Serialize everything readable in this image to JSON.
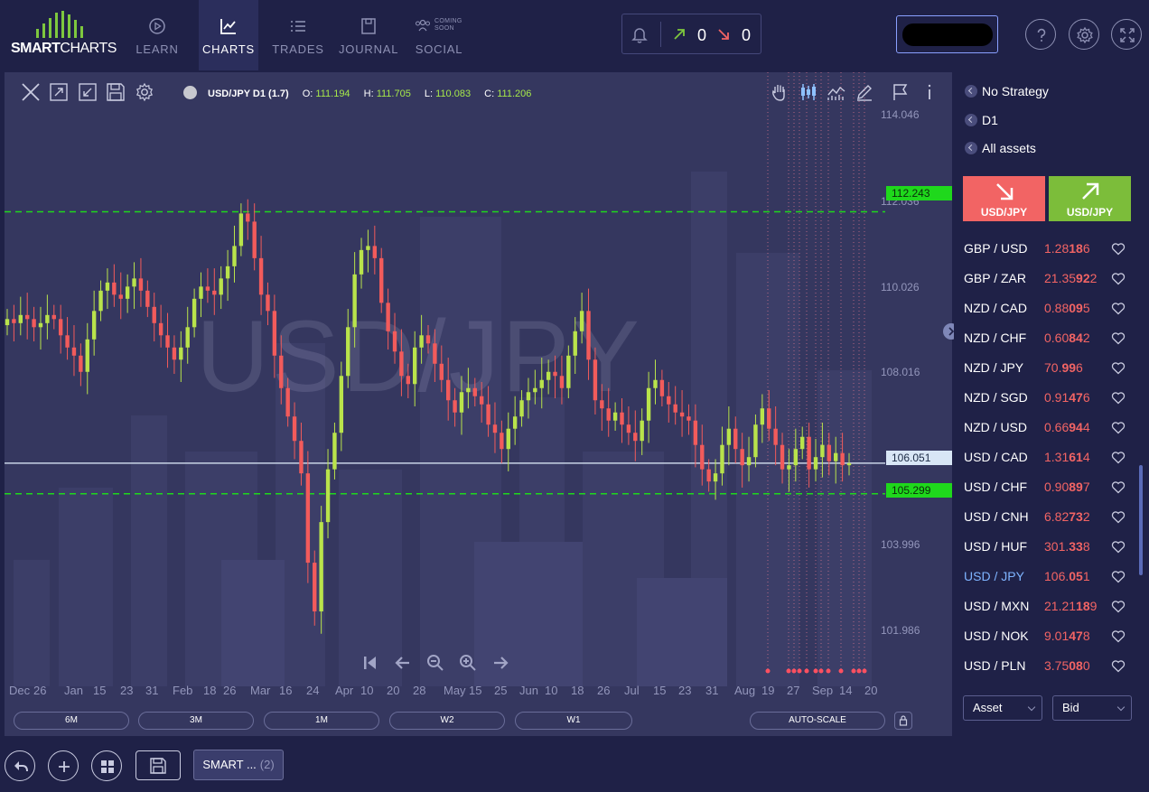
{
  "brand": {
    "logo_bold": "SMART",
    "logo_light": "CHARTS"
  },
  "nav": [
    {
      "label": "LEARN",
      "icon": "play-circle-icon",
      "active": false
    },
    {
      "label": "CHARTS",
      "icon": "line-chart-icon",
      "active": true
    },
    {
      "label": "TRADES",
      "icon": "list-icon",
      "active": false
    },
    {
      "label": "JOURNAL",
      "icon": "journal-icon",
      "active": false
    },
    {
      "label": "SOCIAL",
      "icon": "social-icon",
      "active": false,
      "badge": "COMING SOON"
    }
  ],
  "alerts": {
    "up_count": "0",
    "down_count": "0"
  },
  "chart": {
    "symbol_label": "USD/JPY D1 (1.7)",
    "open_key": "O:",
    "open": "111.194",
    "high_key": "H:",
    "high": "111.705",
    "low_key": "L:",
    "low": "110.083",
    "close_key": "C:",
    "close": "111.206",
    "watermark": "USD/JPY",
    "lines": {
      "upper": "112.243",
      "current": "106.051",
      "lower": "105.299"
    },
    "y_ticks": [
      "114.046",
      "112.036",
      "110.026",
      "108.016",
      "103.996",
      "101.986"
    ],
    "x_labels": [
      "Dec",
      "26",
      "Jan",
      "15",
      "23",
      "31",
      "Feb",
      "18",
      "26",
      "Mar",
      "16",
      "24",
      "Apr",
      "10",
      "20",
      "28",
      "May",
      "15",
      "25",
      "Jun",
      "10",
      "18",
      "26",
      "Jul",
      "15",
      "23",
      "31",
      "Aug",
      "19",
      "27",
      "Sep",
      "14",
      "20"
    ],
    "timeframes": [
      "6M",
      "3M",
      "1M",
      "W2",
      "W1"
    ],
    "auto_scale": "AUTO-SCALE",
    "colors": {
      "up": "#b9e34b",
      "down": "#f25b5b",
      "level": "#1fd81c"
    }
  },
  "chart_data": {
    "type": "candlestick",
    "title": "USD/JPY D1",
    "ylim": [
      101.0,
      114.7
    ],
    "y_ticks": [
      114.046,
      112.036,
      110.026,
      108.016,
      103.996,
      101.986
    ],
    "levels": [
      112.243,
      106.051,
      105.299
    ],
    "close_series": [
      109.6,
      109.5,
      109.7,
      109.6,
      109.4,
      109.5,
      109.7,
      109.6,
      109.2,
      108.9,
      108.7,
      108.3,
      109.1,
      109.8,
      110.3,
      110.5,
      110.2,
      110.1,
      110.4,
      110.6,
      110.3,
      109.9,
      109.5,
      109.2,
      108.9,
      108.6,
      108.9,
      109.4,
      110.1,
      110.4,
      110.3,
      110.2,
      110.6,
      110.9,
      111.4,
      112.2,
      112.0,
      111.1,
      110.2,
      109.8,
      108.7,
      107.9,
      107.2,
      106.6,
      105.8,
      103.6,
      102.4,
      104.6,
      105.9,
      106.8,
      108.2,
      109.4,
      110.7,
      111.3,
      111.4,
      111.1,
      110.0,
      109.3,
      108.8,
      108.2,
      108.0,
      108.9,
      109.2,
      109.0,
      108.5,
      108.1,
      107.6,
      107.3,
      107.8,
      107.9,
      107.7,
      107.5,
      107.0,
      106.8,
      106.4,
      106.9,
      107.2,
      107.6,
      107.8,
      107.9,
      108.1,
      108.3,
      108.2,
      107.9,
      108.7,
      109.3,
      109.8,
      108.6,
      107.6,
      107.4,
      107.1,
      107.3,
      107.0,
      106.8,
      106.6,
      107.1,
      107.9,
      108.1,
      107.7,
      107.5,
      107.3,
      107.2,
      107.1,
      106.5,
      105.9,
      105.6,
      105.8,
      106.5,
      106.9,
      106.4,
      106.0,
      106.2,
      107.0,
      107.4,
      106.9,
      106.5,
      105.9,
      106.0,
      106.4,
      106.7,
      105.9,
      106.2,
      106.5,
      106.1,
      106.3,
      106.0,
      106.05
    ]
  },
  "right_panel": {
    "filters": [
      "No Strategy",
      "D1",
      "All assets"
    ],
    "sell_label": "USD/JPY",
    "buy_label": "USD/JPY",
    "watchlist": [
      {
        "pair": "GBP  /  USD",
        "pre": "1.28",
        "big": "18",
        "post": "6",
        "active": false
      },
      {
        "pair": "GBP  /  ZAR",
        "pre": "21.35",
        "big": "92",
        "post": "2",
        "active": false
      },
      {
        "pair": "NZD  /  CAD",
        "pre": "0.88",
        "big": "09",
        "post": "5",
        "active": false
      },
      {
        "pair": "NZD  /  CHF",
        "pre": "0.60",
        "big": "84",
        "post": "2",
        "active": false
      },
      {
        "pair": "NZD  /   JPY",
        "pre": "70.",
        "big": "99",
        "post": "6",
        "active": false
      },
      {
        "pair": "NZD  /  SGD",
        "pre": "0.91",
        "big": "47",
        "post": "6",
        "active": false
      },
      {
        "pair": "NZD  /  USD",
        "pre": "0.66",
        "big": "94",
        "post": "4",
        "active": false
      },
      {
        "pair": "USD  /  CAD",
        "pre": "1.31",
        "big": "61",
        "post": "4",
        "active": false
      },
      {
        "pair": "USD  /  CHF",
        "pre": "0.90",
        "big": "89",
        "post": "7",
        "active": false
      },
      {
        "pair": "USD  /  CNH",
        "pre": "6.82",
        "big": "73",
        "post": "2",
        "active": false
      },
      {
        "pair": "USD  /  HUF",
        "pre": "301.",
        "big": "33",
        "post": "8",
        "active": false
      },
      {
        "pair": "USD  /   JPY",
        "pre": "106.",
        "big": "05",
        "post": "1",
        "active": true
      },
      {
        "pair": "USD  /  MXN",
        "pre": "21.21",
        "big": "18",
        "post": "9",
        "active": false
      },
      {
        "pair": "USD  /  NOK",
        "pre": "9.01",
        "big": "47",
        "post": "8",
        "active": false
      },
      {
        "pair": "USD  /  PLN",
        "pre": "3.75",
        "big": "08",
        "post": "0",
        "active": false
      }
    ],
    "asset_select": "Asset",
    "bid_select": "Bid"
  },
  "bottom": {
    "tab_label": "SMART ...",
    "tab_count": "(2)"
  }
}
